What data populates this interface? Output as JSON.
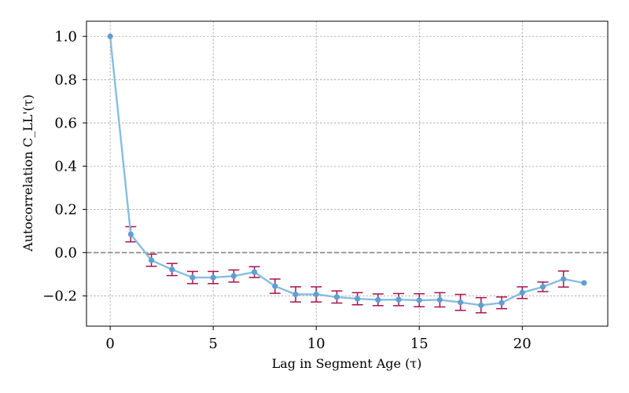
{
  "chart_data": {
    "type": "line",
    "title": "",
    "xlabel": "Lag in Segment Age (τ)",
    "ylabel": "Autocorrelation C_LL'(τ)",
    "xlim": [
      -1.15,
      24.15
    ],
    "ylim": [
      -0.34,
      1.07
    ],
    "xticks": [
      0,
      5,
      10,
      15,
      20
    ],
    "yticks": [
      -0.2,
      0.0,
      0.2,
      0.4,
      0.6,
      0.8,
      1.0
    ],
    "ytick_labels": [
      "−0.2",
      "0.0",
      "0.2",
      "0.4",
      "0.6",
      "0.8",
      "1.0"
    ],
    "grid": true,
    "reference_line_y": 0.0,
    "colors": {
      "line": "#88BDE0",
      "marker": "#5DA0D2",
      "errorbar": "#A6134A",
      "reference": "#888888"
    },
    "series": [
      {
        "x": [
          0,
          1,
          2,
          3,
          4,
          5,
          6,
          7,
          8,
          9,
          10,
          11,
          12,
          13,
          14,
          15,
          16,
          17,
          18,
          19,
          20,
          21,
          22,
          23
        ],
        "y": [
          1.0,
          0.085,
          -0.035,
          -0.078,
          -0.115,
          -0.115,
          -0.108,
          -0.09,
          -0.155,
          -0.193,
          -0.193,
          -0.205,
          -0.213,
          -0.218,
          -0.217,
          -0.22,
          -0.218,
          -0.23,
          -0.243,
          -0.232,
          -0.185,
          -0.158,
          -0.122,
          -0.14
        ],
        "err": [
          0.0,
          0.035,
          0.028,
          0.028,
          0.028,
          0.028,
          0.028,
          0.025,
          0.033,
          0.035,
          0.035,
          0.028,
          0.028,
          0.027,
          0.028,
          0.03,
          0.033,
          0.037,
          0.035,
          0.027,
          0.027,
          0.022,
          0.037,
          0.0
        ]
      }
    ]
  }
}
